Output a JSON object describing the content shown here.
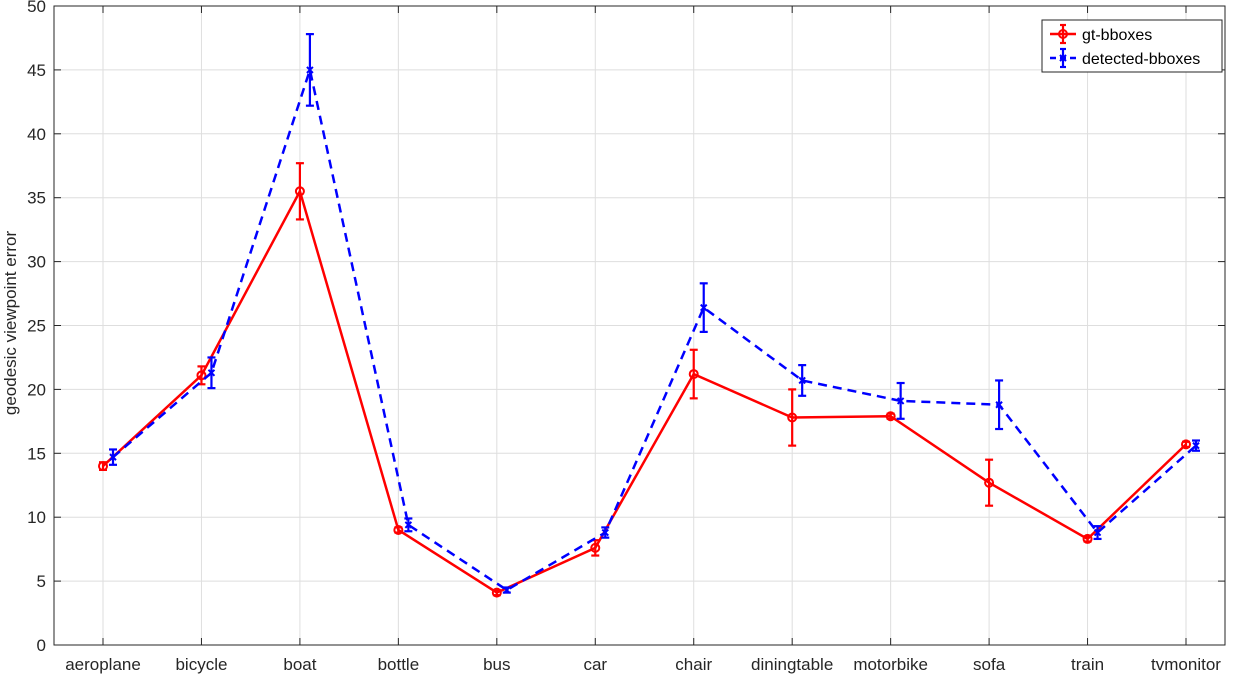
{
  "chart_data": {
    "type": "line",
    "title": "",
    "xlabel": "",
    "ylabel": "geodesic viewpoint error",
    "categories": [
      "aeroplane",
      "bicycle",
      "boat",
      "bottle",
      "bus",
      "car",
      "chair",
      "diningtable",
      "motorbike",
      "sofa",
      "train",
      "tvmonitor"
    ],
    "ylim": [
      0,
      50
    ],
    "yticks": [
      0,
      5,
      10,
      15,
      20,
      25,
      30,
      35,
      40,
      45,
      50
    ],
    "grid": true,
    "legend_position": "top-right",
    "series": [
      {
        "name": "gt-bboxes",
        "color": "#ff0000",
        "line_style": "solid",
        "marker": "circle",
        "values": [
          14.0,
          21.1,
          35.5,
          9.0,
          4.1,
          7.6,
          21.2,
          17.8,
          17.9,
          12.7,
          8.3,
          15.7
        ],
        "errors": [
          0.3,
          0.7,
          2.2,
          0.2,
          0.2,
          0.6,
          1.9,
          2.2,
          0.2,
          1.8,
          0.2,
          0.2
        ]
      },
      {
        "name": "detected-bboxes",
        "color": "#0000ff",
        "line_style": "dashed",
        "marker": "x",
        "values": [
          14.7,
          21.3,
          45.0,
          9.4,
          4.3,
          8.8,
          26.4,
          20.7,
          19.1,
          18.8,
          8.8,
          15.6
        ],
        "errors": [
          0.6,
          1.2,
          2.8,
          0.5,
          0.2,
          0.4,
          1.9,
          1.2,
          1.4,
          1.9,
          0.5,
          0.4
        ]
      }
    ]
  }
}
